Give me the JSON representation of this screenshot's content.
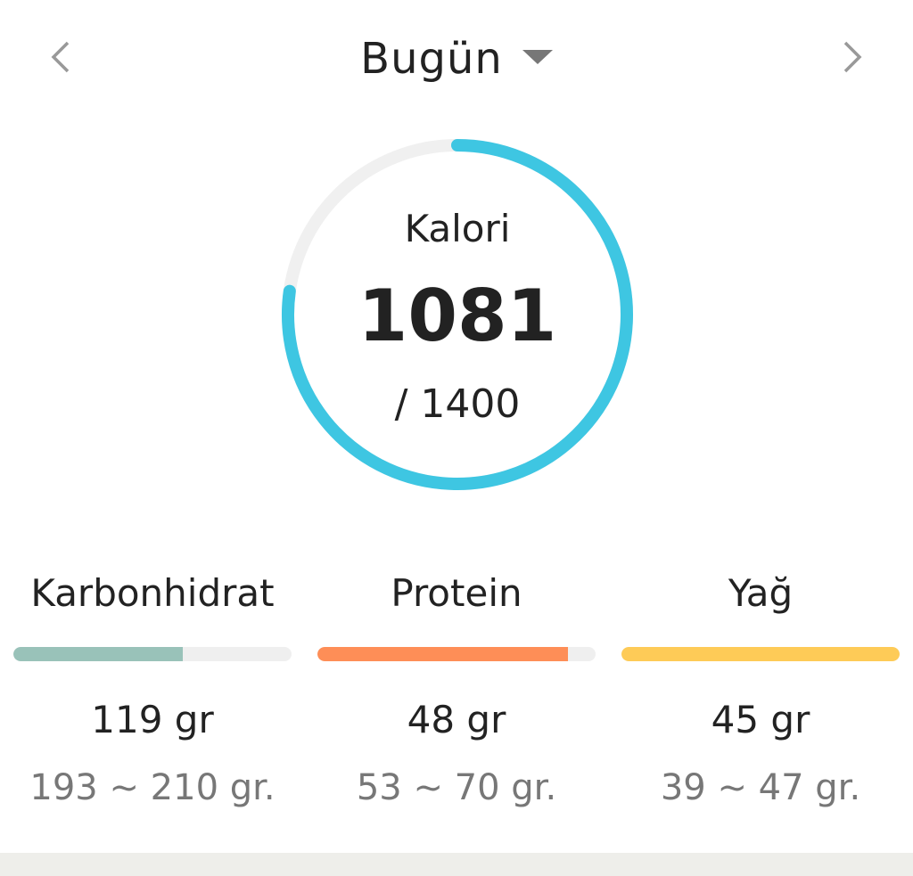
{
  "header": {
    "date_label": "Bugün",
    "prev_icon": "chevron-left-icon",
    "next_icon": "chevron-right-icon",
    "dropdown_icon": "caret-down-icon"
  },
  "calorie": {
    "label": "Kalori",
    "value": 1081,
    "value_text": "1081",
    "goal": 1400,
    "goal_text": "/ 1400",
    "color": "#3ec6e2",
    "track_color": "#f0f0f0"
  },
  "macros": [
    {
      "label": "Karbonhidrat",
      "amount": "119 gr",
      "range": "193 ~ 210 gr.",
      "progress_percent": 61,
      "color": "#99c2b9"
    },
    {
      "label": "Protein",
      "amount": "48 gr",
      "range": "53 ~ 70 gr.",
      "progress_percent": 90,
      "color": "#fe8e57"
    },
    {
      "label": "Yağ",
      "amount": "45 gr",
      "range": "39 ~ 47 gr.",
      "progress_percent": 100,
      "color": "#fecb57"
    }
  ]
}
